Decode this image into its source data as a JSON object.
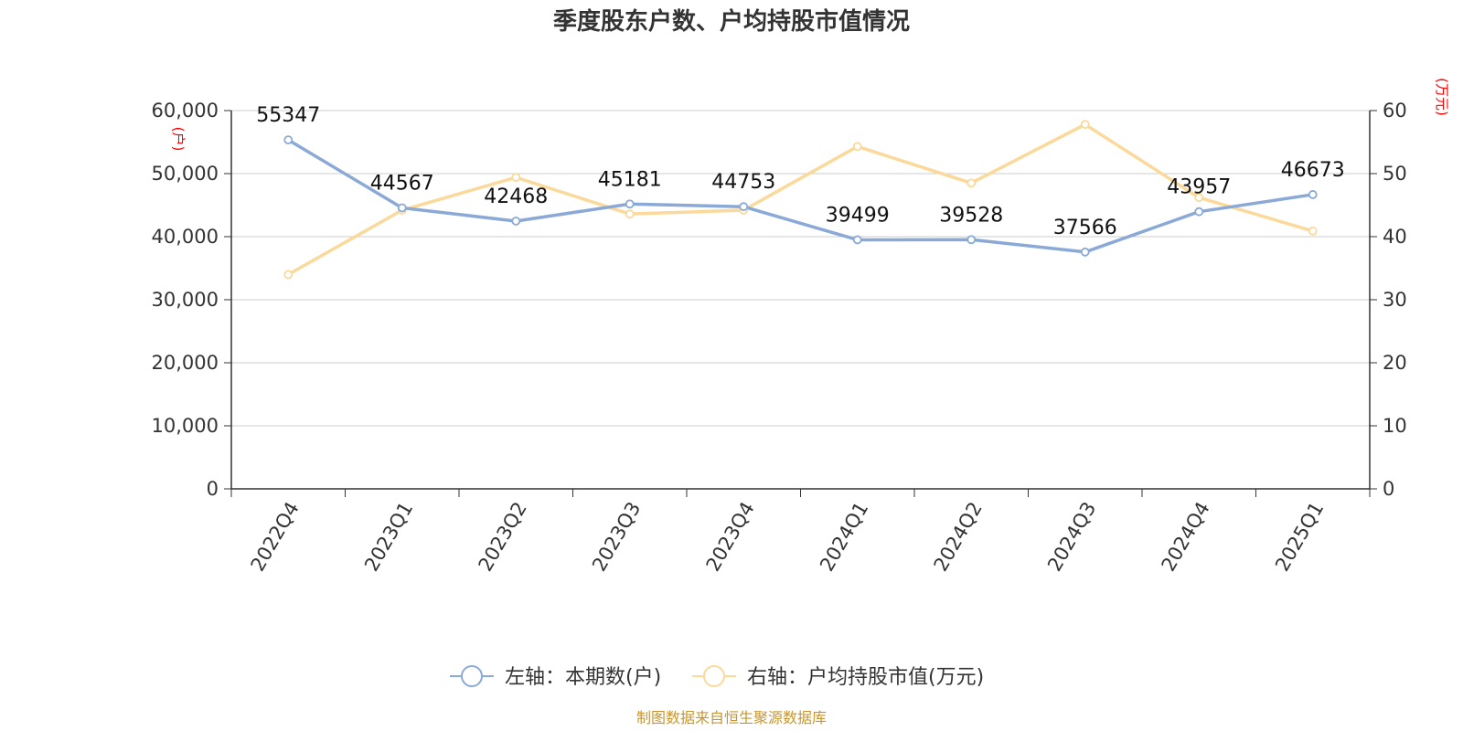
{
  "title": "季度股东户数、户均持股市值情况",
  "source": "制图数据来自恒生聚源数据库",
  "colors": {
    "series1": "#8aa9d6",
    "series2": "#fbd99a",
    "grid": "#cccccc",
    "axis": "#333333",
    "unit": "#ff0000",
    "source": "#c8962e"
  },
  "chart_data": {
    "type": "line",
    "title": "季度股东户数、户均持股市值情况",
    "categories": [
      "2022Q4",
      "2023Q1",
      "2023Q2",
      "2023Q3",
      "2023Q4",
      "2024Q1",
      "2024Q2",
      "2024Q3",
      "2024Q4",
      "2025Q1"
    ],
    "y_left": {
      "label": "(户)",
      "ylim": [
        0,
        60000
      ],
      "ticks": [
        "0",
        "10,000",
        "20,000",
        "30,000",
        "40,000",
        "50,000",
        "60,000"
      ]
    },
    "y_right": {
      "label": "(万元)",
      "ylim": [
        0,
        60
      ],
      "ticks": [
        "0",
        "10",
        "20",
        "30",
        "40",
        "50",
        "60"
      ]
    },
    "grid": true,
    "legend_position": "bottom-center",
    "series": [
      {
        "name": "左轴：本期数(户)",
        "axis": "left",
        "values": [
          55347,
          44567,
          42468,
          45181,
          44753,
          39499,
          39528,
          37566,
          43957,
          46673
        ],
        "labels": [
          "55347",
          "44567",
          "42468",
          "45181",
          "44753",
          "39499",
          "39528",
          "37566",
          "43957",
          "46673"
        ]
      },
      {
        "name": "右轴：户均持股市值(万元)",
        "axis": "right",
        "values": [
          34.0,
          44.2,
          49.4,
          43.6,
          44.2,
          54.3,
          48.5,
          57.8,
          46.2,
          40.9
        ]
      }
    ]
  }
}
